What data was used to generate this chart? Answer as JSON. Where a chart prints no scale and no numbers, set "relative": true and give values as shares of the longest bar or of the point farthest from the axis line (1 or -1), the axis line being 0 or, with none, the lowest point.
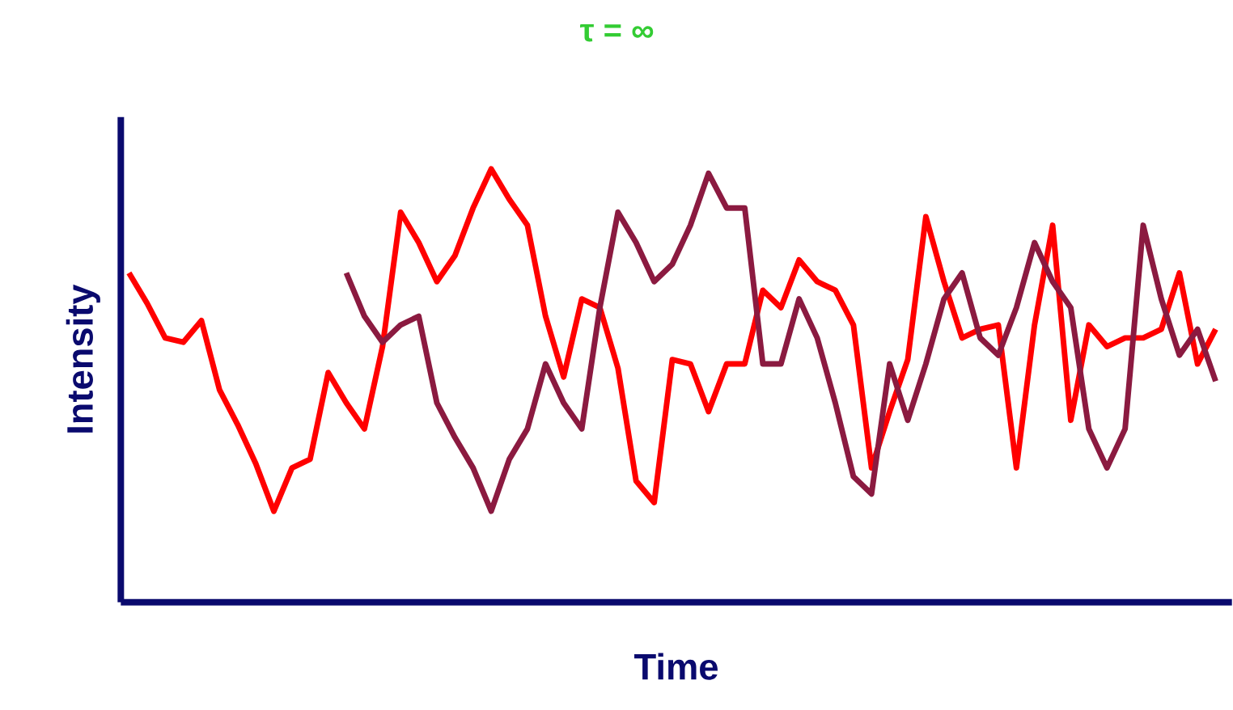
{
  "chart_data": {
    "type": "line",
    "relative": true,
    "title": "τ = ∞",
    "xlabel": "Time",
    "ylabel": "Intensity",
    "marker": "none",
    "line_style": "solid",
    "categories": [
      null,
      null,
      null,
      null,
      null,
      null,
      null,
      null,
      null,
      null,
      null,
      null,
      null,
      null,
      null,
      null,
      null,
      null,
      null,
      null,
      null,
      null,
      null,
      null,
      null,
      null,
      null,
      null,
      null,
      null,
      null,
      null,
      null,
      null,
      null,
      null,
      null,
      null,
      null,
      null,
      null,
      null,
      null,
      null,
      null,
      null,
      null,
      null,
      null,
      null,
      null,
      null,
      null,
      null,
      null,
      null,
      null,
      null,
      null,
      null,
      null
    ],
    "series": [
      {
        "color": "#ff0000",
        "values": [
          0.76,
          0.69,
          0.61,
          0.6,
          0.65,
          0.49,
          0.41,
          0.32,
          0.21,
          0.31,
          0.33,
          0.53,
          0.46,
          0.4,
          0.59,
          0.9,
          0.83,
          0.74,
          0.8,
          0.91,
          1.0,
          0.93,
          0.87,
          0.66,
          0.52,
          0.7,
          0.68,
          0.54,
          0.28,
          0.23,
          0.56,
          0.55,
          0.44,
          0.55,
          0.55,
          0.72,
          0.68,
          0.79,
          0.74,
          0.72,
          0.64,
          0.31,
          0.44,
          0.56,
          0.89,
          0.74,
          0.61,
          0.63,
          0.64,
          0.31,
          0.64,
          0.87,
          0.42,
          0.64,
          0.59,
          0.61,
          0.61,
          0.63,
          0.76,
          0.55,
          0.63
        ]
      },
      {
        "color": "#8b1a40",
        "values": [
          null,
          null,
          null,
          null,
          null,
          null,
          null,
          null,
          null,
          null,
          null,
          null,
          0.76,
          0.66,
          0.6,
          0.64,
          0.66,
          0.46,
          0.38,
          0.31,
          0.21,
          0.33,
          0.4,
          0.55,
          0.46,
          0.4,
          0.68,
          0.9,
          0.83,
          0.74,
          0.78,
          0.87,
          0.99,
          0.91,
          0.91,
          0.55,
          0.55,
          0.7,
          0.61,
          0.46,
          0.29,
          0.25,
          0.55,
          0.42,
          0.55,
          0.7,
          0.76,
          0.61,
          0.57,
          0.68,
          0.83,
          0.74,
          0.68,
          0.4,
          0.31,
          0.4,
          0.87,
          0.7,
          0.57,
          0.63,
          0.51
        ]
      }
    ]
  }
}
